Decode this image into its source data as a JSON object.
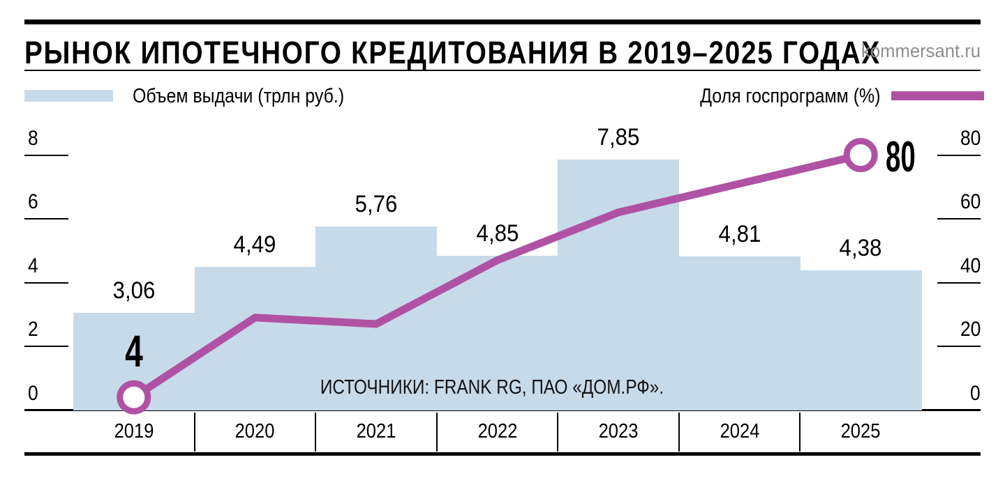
{
  "header": {
    "title": "РЫНОК ИПОТЕЧНОГО КРЕДИТОВАНИЯ В 2019–2025 ГОДАХ",
    "site": "kommersant.ru"
  },
  "legend": {
    "bars_label": "Объем выдачи (трлн руб.)",
    "line_label": "Доля госпрограмм (%)"
  },
  "source_note": "ИСТОЧНИКИ: FRANK RG, ПАО «ДОМ.РФ».",
  "colors": {
    "bar_fill": "#c7dae9",
    "line": "#b052a4",
    "site_text": "#8e8e8e",
    "axis": "#000000"
  },
  "chart_data": {
    "type": "bar+line",
    "categories": [
      "2019",
      "2020",
      "2021",
      "2022",
      "2023",
      "2024",
      "2025"
    ],
    "series": [
      {
        "name": "Объем выдачи (трлн руб.)",
        "type": "bar",
        "axis": "left",
        "values": [
          3.06,
          4.49,
          5.76,
          4.85,
          7.85,
          4.81,
          4.38
        ],
        "value_labels": [
          "3,06",
          "4,49",
          "5,76",
          "4,85",
          "7,85",
          "4,81",
          "4,38"
        ]
      },
      {
        "name": "Доля госпрограмм (%)",
        "type": "line",
        "axis": "right",
        "values": [
          4,
          29,
          27,
          47,
          62,
          71,
          80
        ],
        "labeled_points": [
          {
            "index": 0,
            "label": "4"
          },
          {
            "index": 6,
            "label": "80"
          }
        ]
      }
    ],
    "left_axis": {
      "ticks": [
        0,
        2,
        4,
        6,
        8
      ],
      "range": [
        0,
        8.8
      ]
    },
    "right_axis": {
      "ticks": [
        0,
        20,
        40,
        60,
        80
      ],
      "range": [
        0,
        88
      ]
    },
    "grid": false,
    "legend_position": "top"
  }
}
